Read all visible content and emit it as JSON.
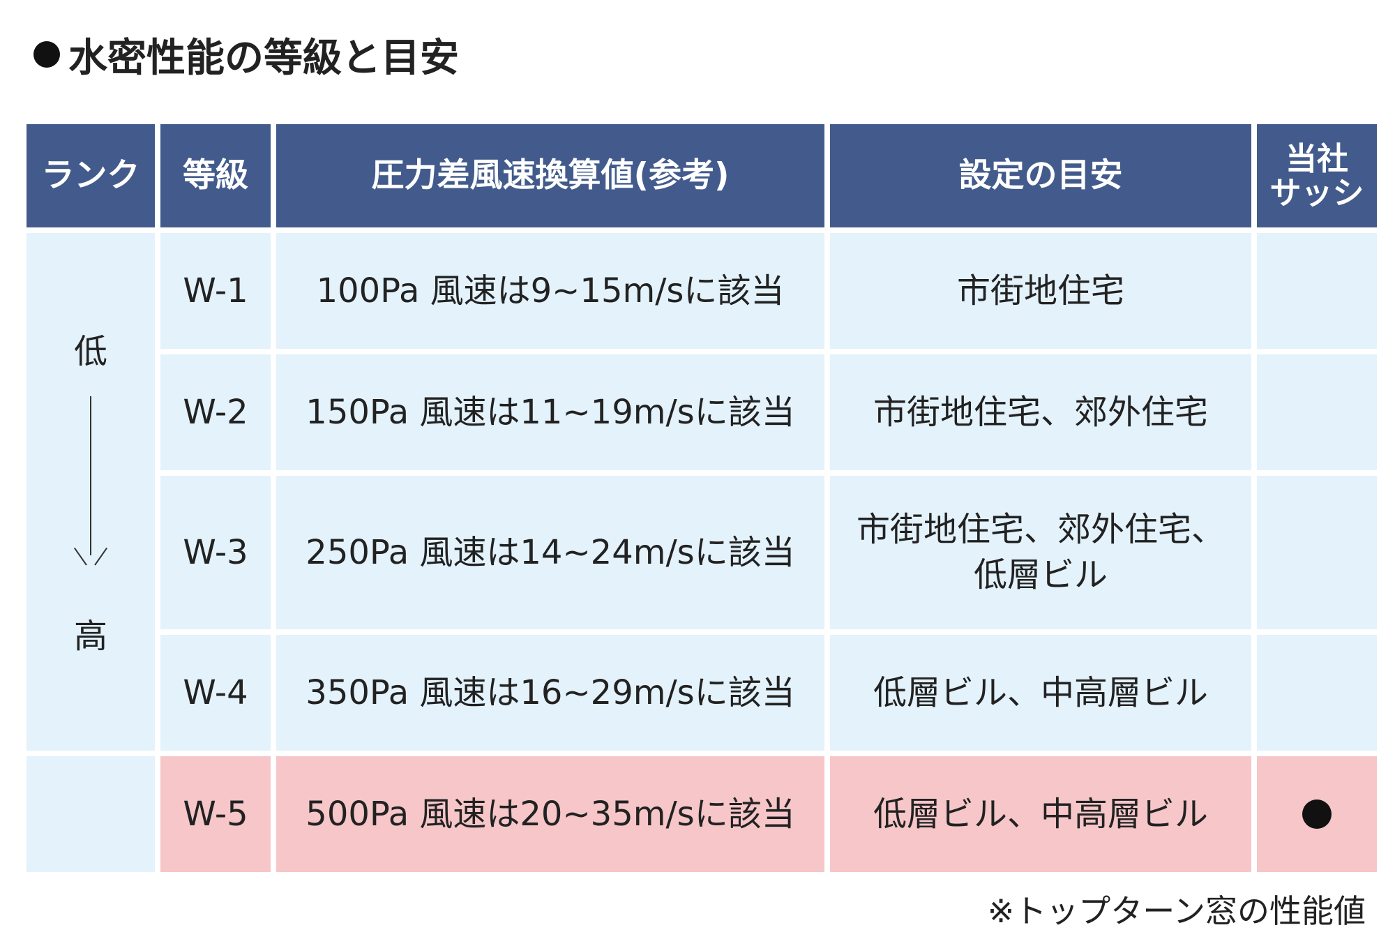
{
  "title": "水密性能の等級と目安",
  "table": {
    "headers": {
      "rank": "ランク",
      "grade": "等級",
      "pressure": "圧力差風速換算値(参考)",
      "setting": "設定の目安",
      "sash_line1": "当社",
      "sash_line2": "サッシ"
    },
    "rank": {
      "low": "低",
      "high": "高"
    },
    "rows": [
      {
        "grade": "W-1",
        "pressure": "100Pa 風速は9~15m/sに該当",
        "setting_line1": "市街地住宅",
        "setting_line2": "",
        "sash": ""
      },
      {
        "grade": "W-2",
        "pressure": "150Pa 風速は11~19m/sに該当",
        "setting_line1": "市街地住宅、郊外住宅",
        "setting_line2": "",
        "sash": ""
      },
      {
        "grade": "W-3",
        "pressure": "250Pa 風速は14~24m/sに該当",
        "setting_line1": "市街地住宅、郊外住宅、",
        "setting_line2": "低層ビル",
        "sash": ""
      },
      {
        "grade": "W-4",
        "pressure": "350Pa 風速は16~29m/sに該当",
        "setting_line1": "低層ビル、中高層ビル",
        "setting_line2": "",
        "sash": ""
      },
      {
        "grade": "W-5",
        "pressure": "500Pa 風速は20~35m/sに該当",
        "setting_line1": "低層ビル、中高層ビル",
        "setting_line2": "",
        "sash": "●",
        "highlighted": true
      }
    ]
  },
  "note": "※トップターン窓の性能値",
  "colors": {
    "header_bg": "#425b8c",
    "body_bg": "#e4f2fb",
    "highlight_bg": "#f6c6c9"
  }
}
